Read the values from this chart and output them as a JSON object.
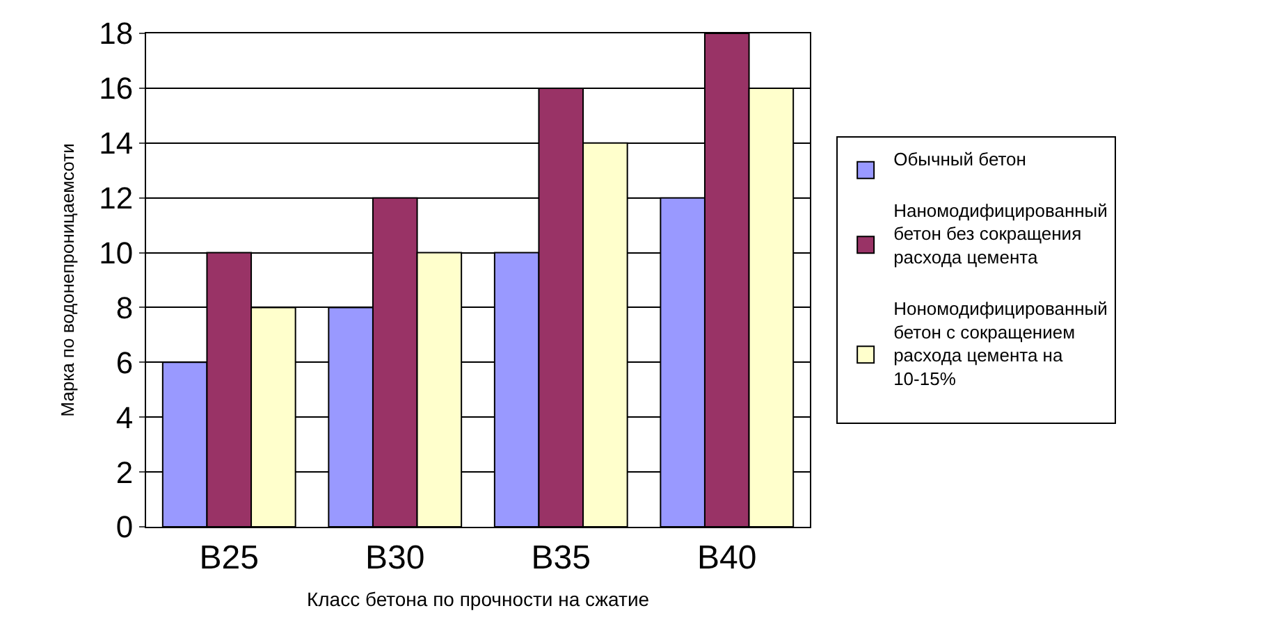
{
  "chart_data": {
    "type": "bar",
    "xlabel": "Класс бетона по прочности на сжатие",
    "ylabel": "Марка по водонепроницаемсоти",
    "categories": [
      "B25",
      "B30",
      "B35",
      "B40"
    ],
    "series": [
      {
        "name": "Обычный бетон",
        "color": "#9999ff",
        "values": [
          6,
          8,
          10,
          12
        ]
      },
      {
        "name": "Наномодифицированный бетон без сокращения расхода цемента",
        "color": "#993366",
        "values": [
          10,
          12,
          16,
          18
        ]
      },
      {
        "name": "Нономодифицированный бетон с сокращением расхода цемента на 10-15%",
        "color": "#ffffcc",
        "values": [
          8,
          10,
          14,
          16
        ]
      }
    ],
    "ylim": [
      0,
      18
    ],
    "yticks": [
      0,
      2,
      4,
      6,
      8,
      10,
      12,
      14,
      16,
      18
    ],
    "grid": "y",
    "legend": "right"
  }
}
